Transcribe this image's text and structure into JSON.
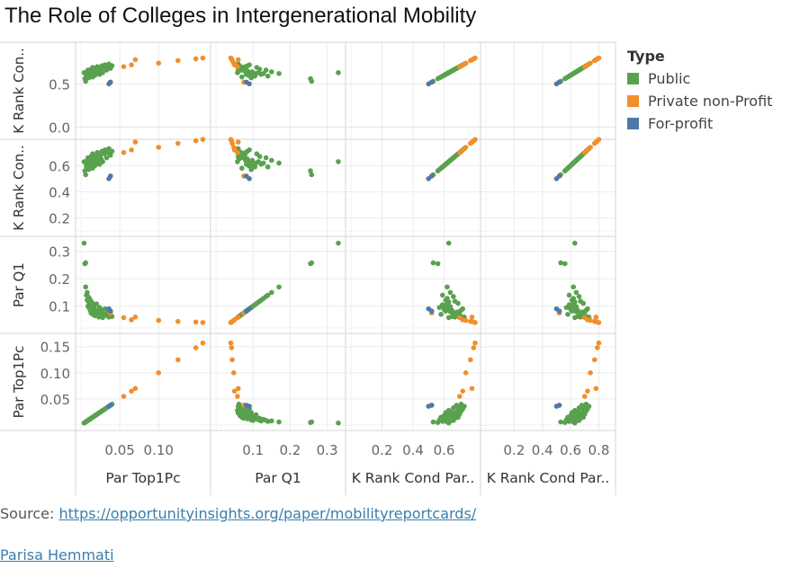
{
  "title": "The Role of Colleges in Intergenerational Mobility",
  "legend": {
    "title": "Type",
    "items": [
      {
        "label": "Public",
        "color": "#59a14f"
      },
      {
        "label": "Private non-Profit",
        "color": "#f28e2b"
      },
      {
        "label": "For-profit",
        "color": "#4e79a7"
      }
    ]
  },
  "source": {
    "label": "Source:",
    "url_text": "https://opportunityinsights.org/paper/mobilityreportcards/"
  },
  "author": "Parisa Hemmati",
  "chart_data": {
    "type": "scatter",
    "variables": [
      {
        "key": "top1",
        "label": "Par Top1Pc",
        "ticks": [
          0.05,
          0.1,
          0.15
        ],
        "tick_labels": [
          "0.05",
          "0.10",
          "0.15"
        ],
        "range": [
          0,
          0.165
        ]
      },
      {
        "key": "q1",
        "label": "Par Q1",
        "ticks": [
          0.1,
          0.2,
          0.3
        ],
        "tick_labels": [
          "0.1",
          "0.2",
          "0.3"
        ],
        "range": [
          0,
          0.335
        ]
      },
      {
        "key": "krank1",
        "label": "K Rank Cond Par..",
        "ticks": [
          0.2,
          0.4,
          0.6
        ],
        "tick_labels": [
          "0.2",
          "0.4",
          "0.6"
        ],
        "range": [
          0,
          0.8
        ]
      },
      {
        "key": "krank2",
        "label": "K Rank Con..",
        "ticks": [
          0.0,
          0.5
        ],
        "tick_labels": [
          "0.0",
          "0.5"
        ],
        "range": [
          -0.1,
          0.9
        ]
      }
    ],
    "row_variables": [
      "krank2",
      "krank1",
      "q1",
      "top1"
    ],
    "col_variables": [
      "top1",
      "q1",
      "krank1",
      "krank2"
    ],
    "row_labels": [
      "K Rank Con..",
      "K Rank Con..",
      "Par Q1",
      "Par Top1Pc"
    ],
    "col_labels": [
      "Par Top1Pc",
      "Par Q1",
      "K Rank Cond Par..",
      "K Rank Cond Par.."
    ],
    "row_ticks": [
      {
        "values": [
          0.0,
          0.5
        ],
        "labels": [
          "0.0",
          "0.5"
        ]
      },
      {
        "values": [
          0.2,
          0.4,
          0.6
        ],
        "labels": [
          "0.2",
          "0.4",
          "0.6"
        ]
      },
      {
        "values": [
          0.1,
          0.2,
          0.3
        ],
        "labels": [
          "0.1",
          "0.2",
          "0.3"
        ]
      },
      {
        "values": [
          0.05,
          0.1,
          0.15
        ],
        "labels": [
          "0.05",
          "0.10",
          "0.15"
        ]
      }
    ],
    "col_ticks": [
      {
        "values": [
          0.05,
          0.1
        ],
        "labels": [
          "0.05",
          "0.10"
        ]
      },
      {
        "values": [
          0.1,
          0.2,
          0.3
        ],
        "labels": [
          "0.1",
          "0.2",
          "0.3"
        ]
      },
      {
        "values": [
          0.2,
          0.4,
          0.6
        ],
        "labels": [
          "0.2",
          "0.4",
          "0.6"
        ]
      },
      {
        "values": [
          0.2,
          0.4,
          0.6,
          0.8
        ],
        "labels": [
          "0.2",
          "0.4",
          "0.6",
          "0.8"
        ]
      }
    ],
    "grid": true,
    "legend_position": "right",
    "series": [
      {
        "name": "Public",
        "color": "#59a14f",
        "points": [
          {
            "top1": 0.004,
            "q1": 0.33,
            "krank": 0.63
          },
          {
            "top1": 0.005,
            "q1": 0.255,
            "krank": 0.56
          },
          {
            "top1": 0.006,
            "q1": 0.258,
            "krank": 0.53
          },
          {
            "top1": 0.006,
            "q1": 0.17,
            "krank": 0.62
          },
          {
            "top1": 0.007,
            "q1": 0.14,
            "krank": 0.59
          },
          {
            "top1": 0.008,
            "q1": 0.15,
            "krank": 0.64
          },
          {
            "top1": 0.008,
            "q1": 0.122,
            "krank": 0.61
          },
          {
            "top1": 0.009,
            "q1": 0.1,
            "krank": 0.6
          },
          {
            "top1": 0.009,
            "q1": 0.135,
            "krank": 0.66
          },
          {
            "top1": 0.01,
            "q1": 0.115,
            "krank": 0.63
          },
          {
            "top1": 0.01,
            "q1": 0.095,
            "krank": 0.57
          },
          {
            "top1": 0.011,
            "q1": 0.128,
            "krank": 0.62
          },
          {
            "top1": 0.012,
            "q1": 0.085,
            "krank": 0.65
          },
          {
            "top1": 0.012,
            "q1": 0.105,
            "krank": 0.59
          },
          {
            "top1": 0.013,
            "q1": 0.118,
            "krank": 0.67
          },
          {
            "top1": 0.013,
            "q1": 0.075,
            "krank": 0.66
          },
          {
            "top1": 0.014,
            "q1": 0.092,
            "krank": 0.63
          },
          {
            "top1": 0.015,
            "q1": 0.07,
            "krank": 0.58
          },
          {
            "top1": 0.015,
            "q1": 0.11,
            "krank": 0.69
          },
          {
            "top1": 0.016,
            "q1": 0.082,
            "krank": 0.61
          },
          {
            "top1": 0.017,
            "q1": 0.098,
            "krank": 0.64
          },
          {
            "top1": 0.018,
            "q1": 0.065,
            "krank": 0.68
          },
          {
            "top1": 0.018,
            "q1": 0.088,
            "krank": 0.6
          },
          {
            "top1": 0.019,
            "q1": 0.072,
            "krank": 0.66
          },
          {
            "top1": 0.02,
            "q1": 0.108,
            "krank": 0.62
          },
          {
            "top1": 0.021,
            "q1": 0.068,
            "krank": 0.7
          },
          {
            "top1": 0.022,
            "q1": 0.08,
            "krank": 0.64
          },
          {
            "top1": 0.023,
            "q1": 0.06,
            "krank": 0.67
          },
          {
            "top1": 0.024,
            "q1": 0.095,
            "krank": 0.61
          },
          {
            "top1": 0.025,
            "q1": 0.078,
            "krank": 0.68
          },
          {
            "top1": 0.026,
            "q1": 0.062,
            "krank": 0.65
          },
          {
            "top1": 0.027,
            "q1": 0.085,
            "krank": 0.71
          },
          {
            "top1": 0.028,
            "q1": 0.058,
            "krank": 0.63
          },
          {
            "top1": 0.03,
            "q1": 0.072,
            "krank": 0.69
          },
          {
            "top1": 0.031,
            "q1": 0.09,
            "krank": 0.72
          },
          {
            "top1": 0.033,
            "q1": 0.066,
            "krank": 0.66
          },
          {
            "top1": 0.035,
            "q1": 0.08,
            "krank": 0.7
          },
          {
            "top1": 0.036,
            "q1": 0.06,
            "krank": 0.73
          },
          {
            "top1": 0.038,
            "q1": 0.075,
            "krank": 0.68
          },
          {
            "top1": 0.04,
            "q1": 0.062,
            "krank": 0.71
          }
        ]
      },
      {
        "name": "Private non-Profit",
        "color": "#f28e2b",
        "points": [
          {
            "top1": 0.038,
            "q1": 0.075,
            "krank": 0.52
          },
          {
            "top1": 0.055,
            "q1": 0.058,
            "krank": 0.7
          },
          {
            "top1": 0.065,
            "q1": 0.05,
            "krank": 0.72
          },
          {
            "top1": 0.07,
            "q1": 0.06,
            "krank": 0.78
          },
          {
            "top1": 0.1,
            "q1": 0.048,
            "krank": 0.74
          },
          {
            "top1": 0.125,
            "q1": 0.044,
            "krank": 0.77
          },
          {
            "top1": 0.148,
            "q1": 0.042,
            "krank": 0.79
          },
          {
            "top1": 0.157,
            "q1": 0.04,
            "krank": 0.8
          }
        ]
      },
      {
        "name": "For-profit",
        "color": "#4e79a7",
        "points": [
          {
            "top1": 0.036,
            "q1": 0.09,
            "krank": 0.5
          },
          {
            "top1": 0.038,
            "q1": 0.082,
            "krank": 0.52
          }
        ]
      }
    ]
  }
}
